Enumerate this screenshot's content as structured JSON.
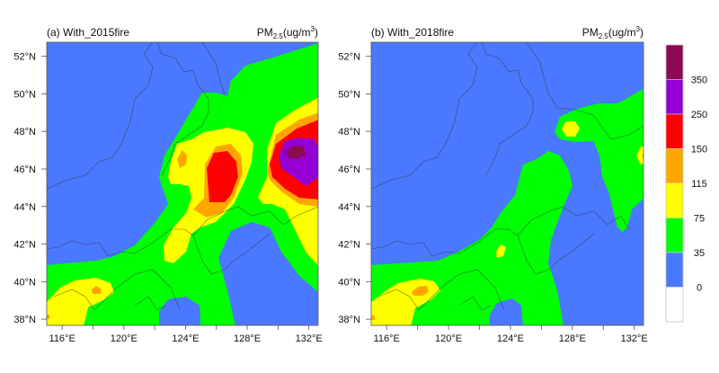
{
  "colors": {
    "c0_35": "#4a78ff",
    "c35_75": "#00ff00",
    "c75_115": "#ffff00",
    "c115_150": "#ffa500",
    "c150_250": "#ff0000",
    "c250_350": "#9400d3",
    "c350_up": "#8b0a50",
    "below0": "#ffffff"
  },
  "panels": [
    {
      "title": "(a) With_2015fire",
      "unit": {
        "main": "PM",
        "sub": "2.5",
        "rest": "(ug/m",
        "sup": "3",
        "close": ")"
      }
    },
    {
      "title": "(b) With_2018fire",
      "unit": {
        "main": "PM",
        "sub": "2.5",
        "rest": "(ug/m",
        "sup": "3",
        "close": ")"
      }
    }
  ],
  "map": {
    "lon_range": [
      115.0,
      132.6
    ],
    "lat_range": [
      37.67,
      52.75
    ],
    "lon_ticks": [
      {
        "v": 116,
        "label": "116°E"
      },
      {
        "v": 118,
        "label": ""
      },
      {
        "v": 120,
        "label": "120°E"
      },
      {
        "v": 122,
        "label": ""
      },
      {
        "v": 124,
        "label": "124°E"
      },
      {
        "v": 126,
        "label": ""
      },
      {
        "v": 128,
        "label": "128°E"
      },
      {
        "v": 130,
        "label": ""
      },
      {
        "v": 132,
        "label": "132°E"
      }
    ],
    "lat_ticks": [
      {
        "v": 52,
        "label": "52°N"
      },
      {
        "v": 50,
        "label": "50°N"
      },
      {
        "v": 48,
        "label": "48°N"
      },
      {
        "v": 46,
        "label": "46°N"
      },
      {
        "v": 44,
        "label": "44°N"
      },
      {
        "v": 42,
        "label": "42°N"
      },
      {
        "v": 40,
        "label": "40°N"
      },
      {
        "v": 38,
        "label": "38°N"
      }
    ]
  },
  "colorbar": {
    "levels": [
      "0",
      "35",
      "75",
      "115",
      "150",
      "250",
      "350"
    ],
    "bins": [
      "below0",
      "c0_35",
      "c35_75",
      "c75_115",
      "c115_150",
      "c150_250",
      "c250_350",
      "c350_up"
    ]
  }
}
